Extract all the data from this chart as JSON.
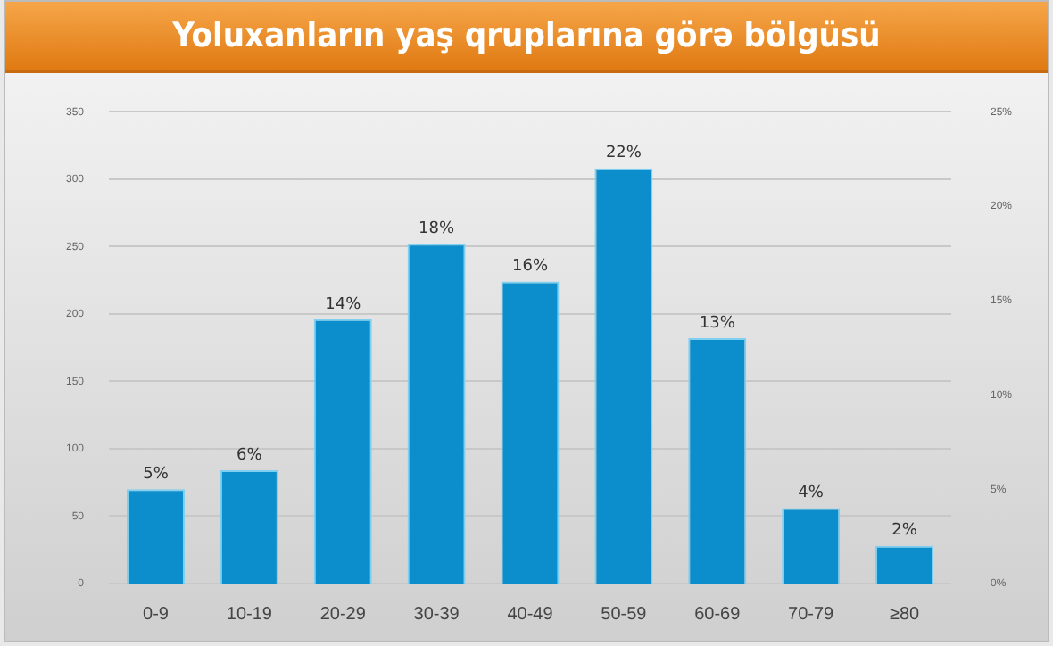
{
  "chart_data": {
    "type": "bar",
    "title": "Yoluxanların yaş qruplarına görə bölgüsü",
    "categories": [
      "0-9",
      "10-19",
      "20-29",
      "30-39",
      "40-49",
      "50-59",
      "60-69",
      "70-79",
      "≥80"
    ],
    "series": [
      {
        "color": "#0b8ecb",
        "axis": "y2",
        "values": [
          5,
          6,
          14,
          18,
          16,
          22,
          13,
          4,
          2
        ],
        "value_labels": [
          "5%",
          "6%",
          "14%",
          "18%",
          "16%",
          "22%",
          "13%",
          "4%",
          "2%"
        ]
      }
    ],
    "ylim": [
      0,
      350
    ],
    "yticks": [
      0,
      50,
      100,
      150,
      200,
      250,
      300,
      350
    ],
    "y2lim": [
      0,
      25
    ],
    "y2ticks": [
      {
        "value": 0,
        "label": "0%"
      },
      {
        "value": 5,
        "label": "5%"
      },
      {
        "value": 10,
        "label": "10%"
      },
      {
        "value": 15,
        "label": "15%"
      },
      {
        "value": 20,
        "label": "20%"
      },
      {
        "value": 25,
        "label": "25%"
      }
    ],
    "grid": "y",
    "legend": false
  }
}
